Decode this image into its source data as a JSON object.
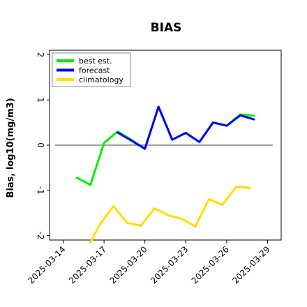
{
  "chart_data": {
    "type": "line",
    "title": "BIAS",
    "xlabel": "",
    "ylabel": "Bias, log10(mg/m3)",
    "ylim": [
      -2.1,
      2.1
    ],
    "xlim": [
      "2025-03-13",
      "2025-03-30"
    ],
    "x_ticks": [
      "2025-03-14",
      "2025-03-17",
      "2025-03-20",
      "2025-03-23",
      "2025-03-26",
      "2025-03-29"
    ],
    "x_tick_highlight": "2025-03-20",
    "y_ticks": [
      2,
      1,
      0,
      -1,
      -2
    ],
    "reference_line": 0,
    "legend_position": "top-left",
    "series": [
      {
        "name": "best est.",
        "color": "#00ee00",
        "points": [
          [
            "2025-03-15",
            -0.72
          ],
          [
            "2025-03-16",
            -0.88
          ],
          [
            "2025-03-17",
            0.05
          ],
          [
            "2025-03-18",
            0.3
          ],
          [
            "2025-03-19",
            0.12
          ],
          [
            "2025-03-20",
            -0.08
          ],
          [
            "2025-03-21",
            0.85
          ],
          [
            "2025-03-22",
            0.12
          ],
          [
            "2025-03-23",
            0.27
          ],
          [
            "2025-03-24",
            0.07
          ],
          [
            "2025-03-25",
            0.5
          ],
          [
            "2025-03-26",
            0.43
          ],
          [
            "2025-03-27",
            0.68
          ],
          [
            "2025-03-28",
            0.65
          ]
        ]
      },
      {
        "name": "forecast",
        "color": "#0000ee",
        "points": [
          [
            "2025-03-18",
            0.28
          ],
          [
            "2025-03-19",
            0.1
          ],
          [
            "2025-03-20",
            -0.08
          ],
          [
            "2025-03-21",
            0.85
          ],
          [
            "2025-03-22",
            0.12
          ],
          [
            "2025-03-23",
            0.27
          ],
          [
            "2025-03-24",
            0.07
          ],
          [
            "2025-03-25",
            0.5
          ],
          [
            "2025-03-26",
            0.43
          ],
          [
            "2025-03-27",
            0.66
          ],
          [
            "2025-03-28",
            0.57
          ]
        ]
      },
      {
        "name": "climatology",
        "color": "#ffdd00",
        "points": [
          [
            "2025-03-16",
            -2.15
          ],
          [
            "2025-03-16.7",
            -1.75
          ],
          [
            "2025-03-17.7",
            -1.35
          ],
          [
            "2025-03-18.7",
            -1.72
          ],
          [
            "2025-03-19.7",
            -1.78
          ],
          [
            "2025-03-20.7",
            -1.4
          ],
          [
            "2025-03-21.7",
            -1.55
          ],
          [
            "2025-03-22.7",
            -1.63
          ],
          [
            "2025-03-23.7",
            -1.8
          ],
          [
            "2025-03-24.7",
            -1.2
          ],
          [
            "2025-03-25.7",
            -1.32
          ],
          [
            "2025-03-26.7",
            -0.92
          ],
          [
            "2025-03-27.7",
            -0.95
          ]
        ]
      }
    ]
  }
}
